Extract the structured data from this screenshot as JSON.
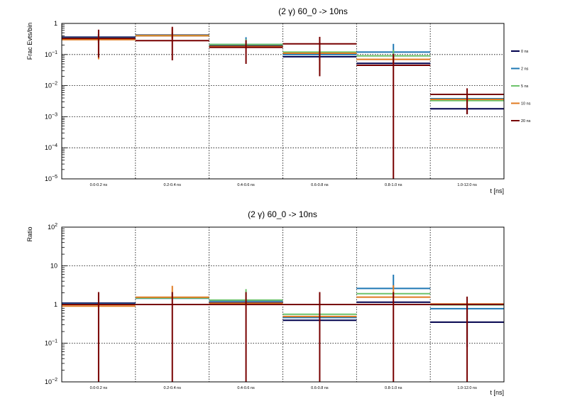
{
  "colors": {
    "0 ns": "#00004d",
    "2 ns": "#1f78b4",
    "5 ns": "#6dc36b",
    "10 ns": "#e07b22",
    "20 ns": "#780000",
    "frame": "#000000",
    "grid": "#000000"
  },
  "chart_data": [
    {
      "type": "histogram",
      "title": "(2 γ) 60_0 -> 10ns",
      "xlabel": "t [ns]",
      "ylabel": "Frac Evts/bin",
      "yscale": "log",
      "ylim": [
        1e-05,
        1
      ],
      "yticks": [
        {
          "v": 1,
          "base": "1",
          "exp": ""
        },
        {
          "v": 0.1,
          "base": "10",
          "exp": "−1"
        },
        {
          "v": 0.01,
          "base": "10",
          "exp": "−2"
        },
        {
          "v": 0.001,
          "base": "10",
          "exp": "−3"
        },
        {
          "v": 0.0001,
          "base": "10",
          "exp": "−4"
        },
        {
          "v": 1e-05,
          "base": "10",
          "exp": "−5"
        }
      ],
      "grid": true,
      "legend_position": "right",
      "categories": [
        "0.0-0.2 ns",
        "0.2-0.4 ns",
        "0.4-0.6 ns",
        "0.6-0.8 ns",
        "0.8-1.0 ns",
        "1.0-12.0 ns"
      ],
      "series": [
        {
          "name": "0 ns",
          "values": [
            0.36,
            0.42,
            0.19,
            0.085,
            0.052,
            0.0018
          ],
          "err_lo": [
            0.1,
            0.08,
            0.025,
            0.02,
            0.0,
            0.0006
          ],
          "err_hi": [
            0.1,
            0.08,
            0.025,
            0.02,
            0.015,
            0.0006
          ]
        },
        {
          "name": "2 ns",
          "values": [
            0.34,
            0.4,
            0.21,
            0.1,
            0.12,
            0.0038
          ],
          "err_lo": [
            0.1,
            0.08,
            0.03,
            0.03,
            0.05,
            0.001
          ],
          "err_hi": [
            0.1,
            0.08,
            0.15,
            0.03,
            0.1,
            0.001
          ]
        },
        {
          "name": "5 ns",
          "values": [
            0.33,
            0.41,
            0.21,
            0.12,
            0.09,
            0.0033
          ],
          "err_lo": [
            0.1,
            0.08,
            0.03,
            0.03,
            0.03,
            0.001
          ],
          "err_hi": [
            0.1,
            0.08,
            0.1,
            0.03,
            0.05,
            0.001
          ]
        },
        {
          "name": "10 ns",
          "values": [
            0.3,
            0.4,
            0.18,
            0.11,
            0.07,
            0.0036
          ],
          "err_lo": [
            0.23,
            0.08,
            0.03,
            0.08,
            0.02,
            0.001
          ],
          "err_hi": [
            0.1,
            0.3,
            0.03,
            0.03,
            0.03,
            0.001
          ]
        },
        {
          "name": "20 ns",
          "values": [
            0.33,
            0.28,
            0.17,
            0.22,
            0.045,
            0.0052
          ],
          "err_lo": [
            0.25,
            0.215,
            0.12,
            0.2,
            0.04499,
            0.004
          ],
          "err_hi": [
            0.3,
            0.5,
            0.12,
            0.15,
            0.06,
            0.003
          ]
        }
      ]
    },
    {
      "type": "histogram",
      "title": "(2 γ) 60_0 -> 10ns",
      "xlabel": "t [ns]",
      "ylabel": "Ratio",
      "yscale": "log",
      "ylim": [
        0.01,
        100
      ],
      "yticks": [
        {
          "v": 100,
          "base": "10",
          "exp": "2"
        },
        {
          "v": 10,
          "base": "10",
          "exp": ""
        },
        {
          "v": 1,
          "base": "1",
          "exp": ""
        },
        {
          "v": 0.1,
          "base": "10",
          "exp": "−1"
        },
        {
          "v": 0.01,
          "base": "10",
          "exp": "−2"
        }
      ],
      "grid": true,
      "categories": [
        "0.0-0.2 ns",
        "0.2-0.4 ns",
        "0.4-0.6 ns",
        "0.6-0.8 ns",
        "0.8-1.0 ns",
        "1.0-12.0 ns"
      ],
      "series": [
        {
          "name": "0 ns",
          "values": [
            1.08,
            1.5,
            1.12,
            0.39,
            1.15,
            0.35
          ],
          "err_lo": [
            0.0,
            0.0,
            0.0,
            0.0,
            0.0,
            0.27
          ],
          "err_hi": [
            0.0,
            0.0,
            0.0,
            0.0,
            0.0,
            0.6
          ]
        },
        {
          "name": "2 ns",
          "values": [
            1.03,
            1.45,
            1.24,
            0.46,
            2.6,
            0.78
          ],
          "err_lo": [
            0.0,
            0.0,
            0.0,
            0.0,
            0.0,
            0.0
          ],
          "err_hi": [
            0.0,
            0.0,
            0.0,
            0.0,
            3.3,
            0.0
          ]
        },
        {
          "name": "5 ns",
          "values": [
            1.0,
            1.48,
            1.3,
            0.56,
            1.9,
            0.98
          ],
          "err_lo": [
            0.0,
            0.0,
            0.0,
            0.0,
            0.0,
            0.0
          ],
          "err_hi": [
            0.0,
            0.0,
            1.2,
            0.0,
            0.0,
            0.0
          ]
        },
        {
          "name": "10 ns",
          "values": [
            0.91,
            1.54,
            1.07,
            0.49,
            1.55,
            1.03
          ],
          "err_lo": [
            0.0,
            0.0,
            0.0,
            0.0,
            0.0,
            0.0
          ],
          "err_hi": [
            0.0,
            1.5,
            0.0,
            0.0,
            1.6,
            0.0
          ]
        },
        {
          "name": "20 ns",
          "values": [
            1.0,
            1.0,
            1.0,
            1.0,
            1.0,
            1.0
          ],
          "err_lo": [
            0.9999,
            0.9999,
            0.9999,
            0.9999,
            0.9999,
            0.9999
          ],
          "err_hi": [
            1.1,
            1.1,
            1.1,
            1.1,
            1.1,
            0.6
          ]
        }
      ]
    }
  ]
}
